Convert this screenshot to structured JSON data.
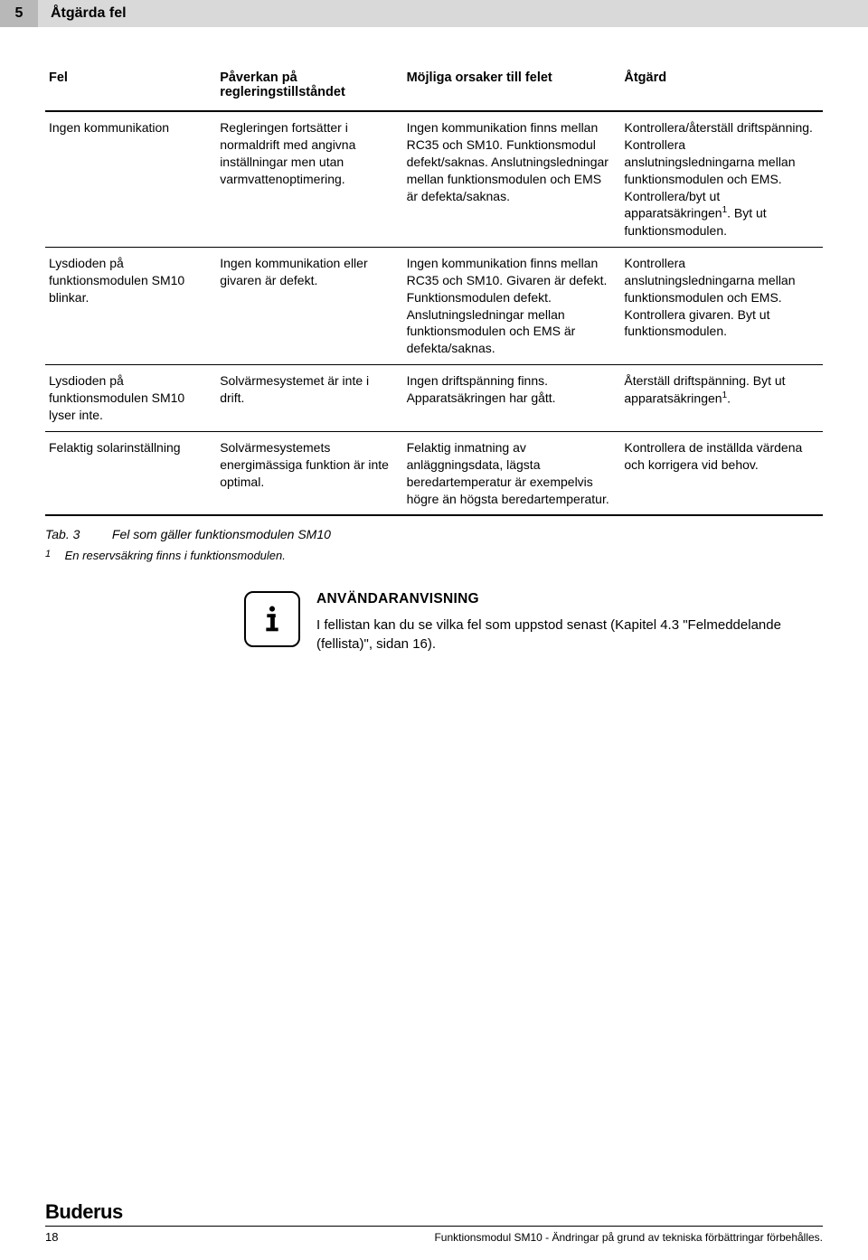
{
  "header": {
    "chapter_num": "5",
    "chapter_title": "Åtgärda fel"
  },
  "table": {
    "columns": [
      "Fel",
      "Påverkan på regleringstillståndet",
      "Möjliga orsaker till felet",
      "Åtgärd"
    ],
    "rows": [
      {
        "c1": "Ingen kommunikation",
        "c2": "Regleringen fortsätter i normaldrift med angivna inställningar men utan varmvattenoptimering.",
        "c3": "Ingen kommunikation finns mellan RC35 och SM10. Funktionsmodul defekt/saknas. Anslutningsledningar mellan funktionsmodulen och EMS är defekta/saknas.",
        "c4_pre": "Kontrollera/återställ driftspänning. Kontrollera anslutningsledningarna mellan funktionsmodulen och EMS. Kontrollera/byt ut apparatsäkringen",
        "c4_sup": "1",
        "c4_post": ". Byt ut funktionsmodulen."
      },
      {
        "c1": "Lysdioden på funktionsmodulen SM10 blinkar.",
        "c2": "Ingen kommunikation eller givaren är defekt.",
        "c3": "Ingen kommunikation finns mellan RC35 och SM10. Givaren är defekt. Funktionsmodulen defekt. Anslutningsledningar mellan funktionsmodulen och EMS är defekta/saknas.",
        "c4_pre": "Kontrollera anslutningsledningarna mellan funktionsmodulen och EMS. Kontrollera givaren. Byt ut funktionsmodulen.",
        "c4_sup": "",
        "c4_post": ""
      },
      {
        "c1": "Lysdioden på funktionsmodulen SM10 lyser inte.",
        "c2": "Solvärmesystemet är inte i drift.",
        "c3": "Ingen driftspänning finns. Apparatsäkringen har gått.",
        "c4_pre": "Återställ driftspänning. Byt ut apparatsäkringen",
        "c4_sup": "1",
        "c4_post": "."
      },
      {
        "c1": "Felaktig solarinställning",
        "c2": "Solvärmesystemets energimässiga funktion är inte optimal.",
        "c3": "Felaktig inmatning av anläggningsdata, lägsta beredartemperatur är exempelvis högre än högsta beredartemperatur.",
        "c4_pre": "Kontrollera de inställda värdena och korrigera vid behov.",
        "c4_sup": "",
        "c4_post": ""
      }
    ]
  },
  "caption": {
    "label": "Tab. 3",
    "text": "Fel som gäller funktionsmodulen SM10"
  },
  "footnote": {
    "num": "1",
    "text": "En reservsäkring finns i funktionsmodulen."
  },
  "info": {
    "heading": "ANVÄNDARANVISNING",
    "body": "I fellistan kan du se vilka fel som uppstod senast (Kapitel 4.3 \"Felmeddelande (fellista)\", sidan 16)."
  },
  "footer": {
    "logo": "Buderus",
    "page": "18",
    "right": "Funktionsmodul SM10 - Ändringar på grund av tekniska förbättringar förbehålles."
  }
}
